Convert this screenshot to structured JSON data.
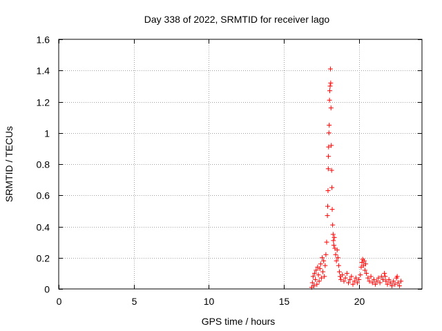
{
  "chart_data": {
    "type": "scatter",
    "title": "Day 338 of 2022, SRMTID for receiver lago",
    "xlabel": "GPS time / hours",
    "ylabel": "SRMTID / TECUs",
    "xlim": [
      0,
      24.2
    ],
    "ylim": [
      0,
      1.6
    ],
    "x_ticks": [
      0,
      5,
      10,
      15,
      20
    ],
    "x_tick_labels": [
      "0",
      "5",
      "10",
      "15",
      "20"
    ],
    "y_ticks": [
      0,
      0.2,
      0.4,
      0.6,
      0.8,
      1.0,
      1.2,
      1.4,
      1.6
    ],
    "y_tick_labels": [
      "0",
      "0.2",
      "0.4",
      "0.6",
      "0.8",
      "1",
      "1.2",
      "1.4",
      "1.6"
    ],
    "grid": true,
    "marker": "+",
    "colors": {
      "series": "#ff0000",
      "grid": "#a0a0a0",
      "axis": "#000000"
    },
    "series": [
      {
        "name": "SRMTID",
        "points": [
          [
            16.85,
            0.01
          ],
          [
            16.9,
            0.04
          ],
          [
            16.95,
            0.08
          ],
          [
            17.0,
            0.02
          ],
          [
            17.05,
            0.1
          ],
          [
            17.1,
            0.06
          ],
          [
            17.15,
            0.12
          ],
          [
            17.2,
            0.03
          ],
          [
            17.25,
            0.14
          ],
          [
            17.3,
            0.09
          ],
          [
            17.35,
            0.05
          ],
          [
            17.4,
            0.13
          ],
          [
            17.45,
            0.16
          ],
          [
            17.5,
            0.07
          ],
          [
            17.55,
            0.2
          ],
          [
            17.6,
            0.11
          ],
          [
            17.65,
            0.18
          ],
          [
            17.7,
            0.08
          ],
          [
            17.75,
            0.15
          ],
          [
            17.8,
            0.22
          ],
          [
            17.85,
            0.3
          ],
          [
            17.9,
            0.47
          ],
          [
            17.92,
            0.53
          ],
          [
            17.94,
            0.63
          ],
          [
            17.96,
            0.77
          ],
          [
            17.97,
            0.85
          ],
          [
            17.98,
            0.91
          ],
          [
            18.0,
            1.0
          ],
          [
            18.02,
            1.05
          ],
          [
            18.04,
            1.21
          ],
          [
            18.06,
            1.27
          ],
          [
            18.08,
            1.3
          ],
          [
            18.1,
            1.41
          ],
          [
            18.12,
            1.32
          ],
          [
            18.14,
            1.16
          ],
          [
            18.16,
            0.92
          ],
          [
            18.18,
            0.76
          ],
          [
            18.2,
            0.65
          ],
          [
            18.22,
            0.51
          ],
          [
            18.25,
            0.41
          ],
          [
            18.28,
            0.35
          ],
          [
            18.3,
            0.31
          ],
          [
            18.33,
            0.28
          ],
          [
            18.36,
            0.33
          ],
          [
            18.4,
            0.26
          ],
          [
            18.45,
            0.22
          ],
          [
            18.5,
            0.18
          ],
          [
            18.55,
            0.25
          ],
          [
            18.6,
            0.2
          ],
          [
            18.65,
            0.15
          ],
          [
            18.7,
            0.11
          ],
          [
            18.75,
            0.08
          ],
          [
            18.8,
            0.06
          ],
          [
            18.9,
            0.09
          ],
          [
            19.0,
            0.05
          ],
          [
            19.1,
            0.07
          ],
          [
            19.2,
            0.1
          ],
          [
            19.3,
            0.04
          ],
          [
            19.4,
            0.06
          ],
          [
            19.5,
            0.08
          ],
          [
            19.6,
            0.03
          ],
          [
            19.7,
            0.05
          ],
          [
            19.8,
            0.07
          ],
          [
            19.9,
            0.04
          ],
          [
            20.0,
            0.06
          ],
          [
            20.1,
            0.09
          ],
          [
            20.15,
            0.14
          ],
          [
            20.2,
            0.17
          ],
          [
            20.25,
            0.19
          ],
          [
            20.3,
            0.15
          ],
          [
            20.35,
            0.18
          ],
          [
            20.4,
            0.12
          ],
          [
            20.45,
            0.16
          ],
          [
            20.5,
            0.1
          ],
          [
            20.6,
            0.07
          ],
          [
            20.7,
            0.05
          ],
          [
            20.8,
            0.08
          ],
          [
            20.9,
            0.04
          ],
          [
            21.0,
            0.06
          ],
          [
            21.1,
            0.03
          ],
          [
            21.2,
            0.05
          ],
          [
            21.3,
            0.07
          ],
          [
            21.4,
            0.04
          ],
          [
            21.5,
            0.08
          ],
          [
            21.6,
            0.06
          ],
          [
            21.7,
            0.1
          ],
          [
            21.75,
            0.08
          ],
          [
            21.8,
            0.05
          ],
          [
            21.9,
            0.03
          ],
          [
            22.0,
            0.06
          ],
          [
            22.1,
            0.04
          ],
          [
            22.2,
            0.02
          ],
          [
            22.3,
            0.05
          ],
          [
            22.4,
            0.03
          ],
          [
            22.5,
            0.07
          ],
          [
            22.55,
            0.08
          ],
          [
            22.6,
            0.04
          ],
          [
            22.7,
            0.02
          ],
          [
            22.8,
            0.05
          ]
        ]
      }
    ]
  }
}
